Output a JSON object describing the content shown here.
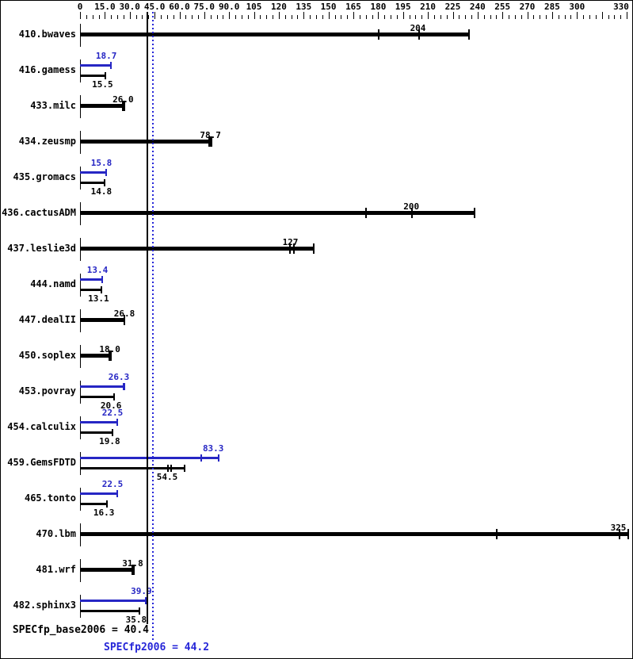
{
  "chart_data": {
    "type": "bar",
    "orientation": "horizontal",
    "title": "",
    "xlabel": "",
    "ylabel": "",
    "axis": {
      "min": 0,
      "max": 330,
      "major_tick_step": 15,
      "minor_tick_step": 3.75,
      "tick_labels": [
        "0",
        "15.0",
        "30.0",
        "45.0",
        "60.0",
        "75.0",
        "90.0",
        "105",
        "120",
        "135",
        "150",
        "165",
        "180",
        "195",
        "210",
        "225",
        "240",
        "255",
        "270",
        "285",
        "300",
        "330"
      ],
      "tick_label_values": [
        0,
        15,
        30,
        45,
        60,
        75,
        90,
        105,
        120,
        135,
        150,
        165,
        180,
        195,
        210,
        225,
        240,
        255,
        270,
        285,
        300,
        330
      ]
    },
    "legend": {
      "base_color_meaning": "base result (black)",
      "peak_color_meaning": "peak result (blue)"
    },
    "colors": {
      "base": "#000000",
      "peak": "#2626c4",
      "reference_base_line": "#000000",
      "reference_peak_line": "#2626d8",
      "background": "#ffffff"
    },
    "reference_lines": {
      "base_value": 40.4,
      "peak_value": 44.2
    },
    "benchmarks": [
      {
        "name": "410.bwaves",
        "type": "single",
        "value": 204,
        "value_label": "204",
        "run_marks": [
          180,
          204
        ],
        "bar_end": 235
      },
      {
        "name": "416.gamess",
        "type": "dual",
        "peak": 18.7,
        "peak_label": "18.7",
        "peak_marks": [],
        "peak_end": 18.7,
        "base": 15.5,
        "base_label": "15.5",
        "base_marks": [],
        "base_end": 15.5
      },
      {
        "name": "433.milc",
        "type": "single",
        "value": 26.0,
        "value_label": "26.0",
        "run_marks": [
          25.2,
          26.0
        ],
        "bar_end": 26.7
      },
      {
        "name": "434.zeusmp",
        "type": "single",
        "value": 78.7,
        "value_label": "78.7",
        "run_marks": [
          77.4,
          78.3
        ],
        "bar_end": 79.3
      },
      {
        "name": "435.gromacs",
        "type": "dual",
        "peak": 15.8,
        "peak_label": "15.8",
        "peak_marks": [],
        "peak_end": 15.8,
        "base": 14.8,
        "base_label": "14.8",
        "base_marks": [],
        "base_end": 14.8
      },
      {
        "name": "436.cactusADM",
        "type": "single",
        "value": 200,
        "value_label": "200",
        "run_marks": [
          172,
          200
        ],
        "bar_end": 238
      },
      {
        "name": "437.leslie3d",
        "type": "single",
        "value": 127,
        "value_label": "127",
        "run_marks": [
          126,
          128.5
        ],
        "bar_end": 141
      },
      {
        "name": "444.namd",
        "type": "dual",
        "peak": 13.4,
        "peak_label": "13.4",
        "peak_marks": [],
        "peak_end": 13.4,
        "base": 13.1,
        "base_label": "13.1",
        "base_marks": [],
        "base_end": 13.1
      },
      {
        "name": "447.dealII",
        "type": "single",
        "value": 26.8,
        "value_label": "26.8",
        "run_marks": [],
        "bar_end": 26.8
      },
      {
        "name": "450.soplex",
        "type": "single",
        "value": 18.0,
        "value_label": "18.0",
        "run_marks": [
          17.2,
          17.8
        ],
        "bar_end": 18.4
      },
      {
        "name": "453.povray",
        "type": "dual",
        "peak": 26.3,
        "peak_label": "26.3",
        "peak_marks": [
          25.9
        ],
        "peak_end": 26.6,
        "base": 20.6,
        "base_label": "20.6",
        "base_marks": [],
        "base_end": 20.6
      },
      {
        "name": "454.calculix",
        "type": "dual",
        "peak": 22.5,
        "peak_label": "22.5",
        "peak_marks": [],
        "peak_end": 22.5,
        "base": 19.8,
        "base_label": "19.8",
        "base_marks": [],
        "base_end": 19.8
      },
      {
        "name": "459.GemsFDTD",
        "type": "dual",
        "peak": 83.3,
        "peak_label": "83.3",
        "peak_marks": [
          72.5
        ],
        "peak_end": 83.5,
        "base": 54.5,
        "base_label": "54.5",
        "base_marks": [
          52.5,
          54.5
        ],
        "base_end": 63
      },
      {
        "name": "465.tonto",
        "type": "dual",
        "peak": 22.5,
        "peak_label": "22.5",
        "peak_marks": [],
        "peak_end": 22.5,
        "base": 16.3,
        "base_label": "16.3",
        "base_marks": [],
        "base_end": 16.3
      },
      {
        "name": "470.lbm",
        "type": "single",
        "value": 325,
        "value_label": "325",
        "run_marks": [
          251,
          325
        ],
        "bar_end": 331
      },
      {
        "name": "481.wrf",
        "type": "single",
        "value": 31.8,
        "value_label": "31.8",
        "run_marks": [
          31.1,
          31.8
        ],
        "bar_end": 32.4
      },
      {
        "name": "482.sphinx3",
        "type": "dual",
        "peak": 39.9,
        "peak_label": "39.9",
        "peak_marks": [],
        "peak_end": 39.9,
        "base": 35.8,
        "base_label": "35.8",
        "base_marks": [],
        "base_end": 35.8
      }
    ],
    "summary": {
      "base_text": "SPECfp_base2006 = 40.4",
      "peak_text": "SPECfp2006 = 44.2",
      "base_value": 40.4,
      "peak_value": 44.2
    }
  }
}
